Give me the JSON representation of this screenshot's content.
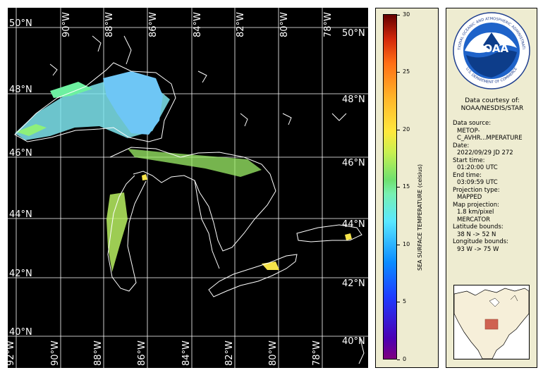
{
  "map": {
    "lat_labels": [
      {
        "text": "50°N",
        "side": "left"
      },
      {
        "text": "48°N",
        "side": "left"
      },
      {
        "text": "46°N",
        "side": "left"
      },
      {
        "text": "44°N",
        "side": "left"
      },
      {
        "text": "42°N",
        "side": "left"
      },
      {
        "text": "40°N",
        "side": "left"
      },
      {
        "text": "50°N",
        "side": "right"
      },
      {
        "text": "48°N",
        "side": "right"
      },
      {
        "text": "46°N",
        "side": "right"
      },
      {
        "text": "44°N",
        "side": "right"
      },
      {
        "text": "42°N",
        "side": "right"
      },
      {
        "text": "40°N",
        "side": "right"
      }
    ],
    "lon_labels_top": [
      "90°W",
      "88°W",
      "86°W",
      "84°W",
      "82°W",
      "80°W",
      "78°W"
    ],
    "lon_labels_bottom": [
      "92°W",
      "90°W",
      "88°W",
      "86°W",
      "84°W",
      "82°W",
      "80°W",
      "78°W"
    ],
    "latitude_bounds": [
      38,
      52
    ],
    "longitude_bounds": [
      -93,
      -75
    ]
  },
  "colorbar": {
    "title": "SEA SURFACE TEMPERATURE (celsius)",
    "ticks": [
      "0",
      "5",
      "10",
      "15",
      "20",
      "25",
      "30"
    ],
    "min": 0,
    "max": 30
  },
  "info": {
    "logo_text": "NOAA",
    "logo_ring_top": "NATIONAL OCEANIC AND ATMOSPHERIC ADMINISTRATION",
    "logo_ring_bottom": "U.S. DEPARTMENT OF COMMERCE",
    "credit_line1": "Data courtesy of:",
    "credit_line2": "NOAA/NESDIS/STAR",
    "fields": [
      {
        "key": "Data source:",
        "values": [
          "METOP-",
          "C_AVHR...MPERATURE"
        ]
      },
      {
        "key": "Date:",
        "values": [
          "2022/09/29 JD 272"
        ]
      },
      {
        "key": "Start time:",
        "values": [
          "01:20:00 UTC"
        ]
      },
      {
        "key": "End time:",
        "values": [
          "03:09:59 UTC"
        ]
      },
      {
        "key": "Projection type:",
        "values": [
          "MAPPED"
        ]
      },
      {
        "key": "Map projection:",
        "values": [
          "1.8 km/pixel",
          "MERCATOR"
        ]
      },
      {
        "key": "Latitude bounds:",
        "values": [
          "38 N -> 52 N"
        ]
      },
      {
        "key": "Longitude bounds:",
        "values": [
          "93 W -> 75 W"
        ]
      }
    ]
  },
  "colors": {
    "panel_bg": "#eeecd1",
    "map_bg": "#000000",
    "coast": "#ffffff",
    "noaa_blue": "#1f63c9",
    "inset_highlight": "#c94a3a"
  }
}
